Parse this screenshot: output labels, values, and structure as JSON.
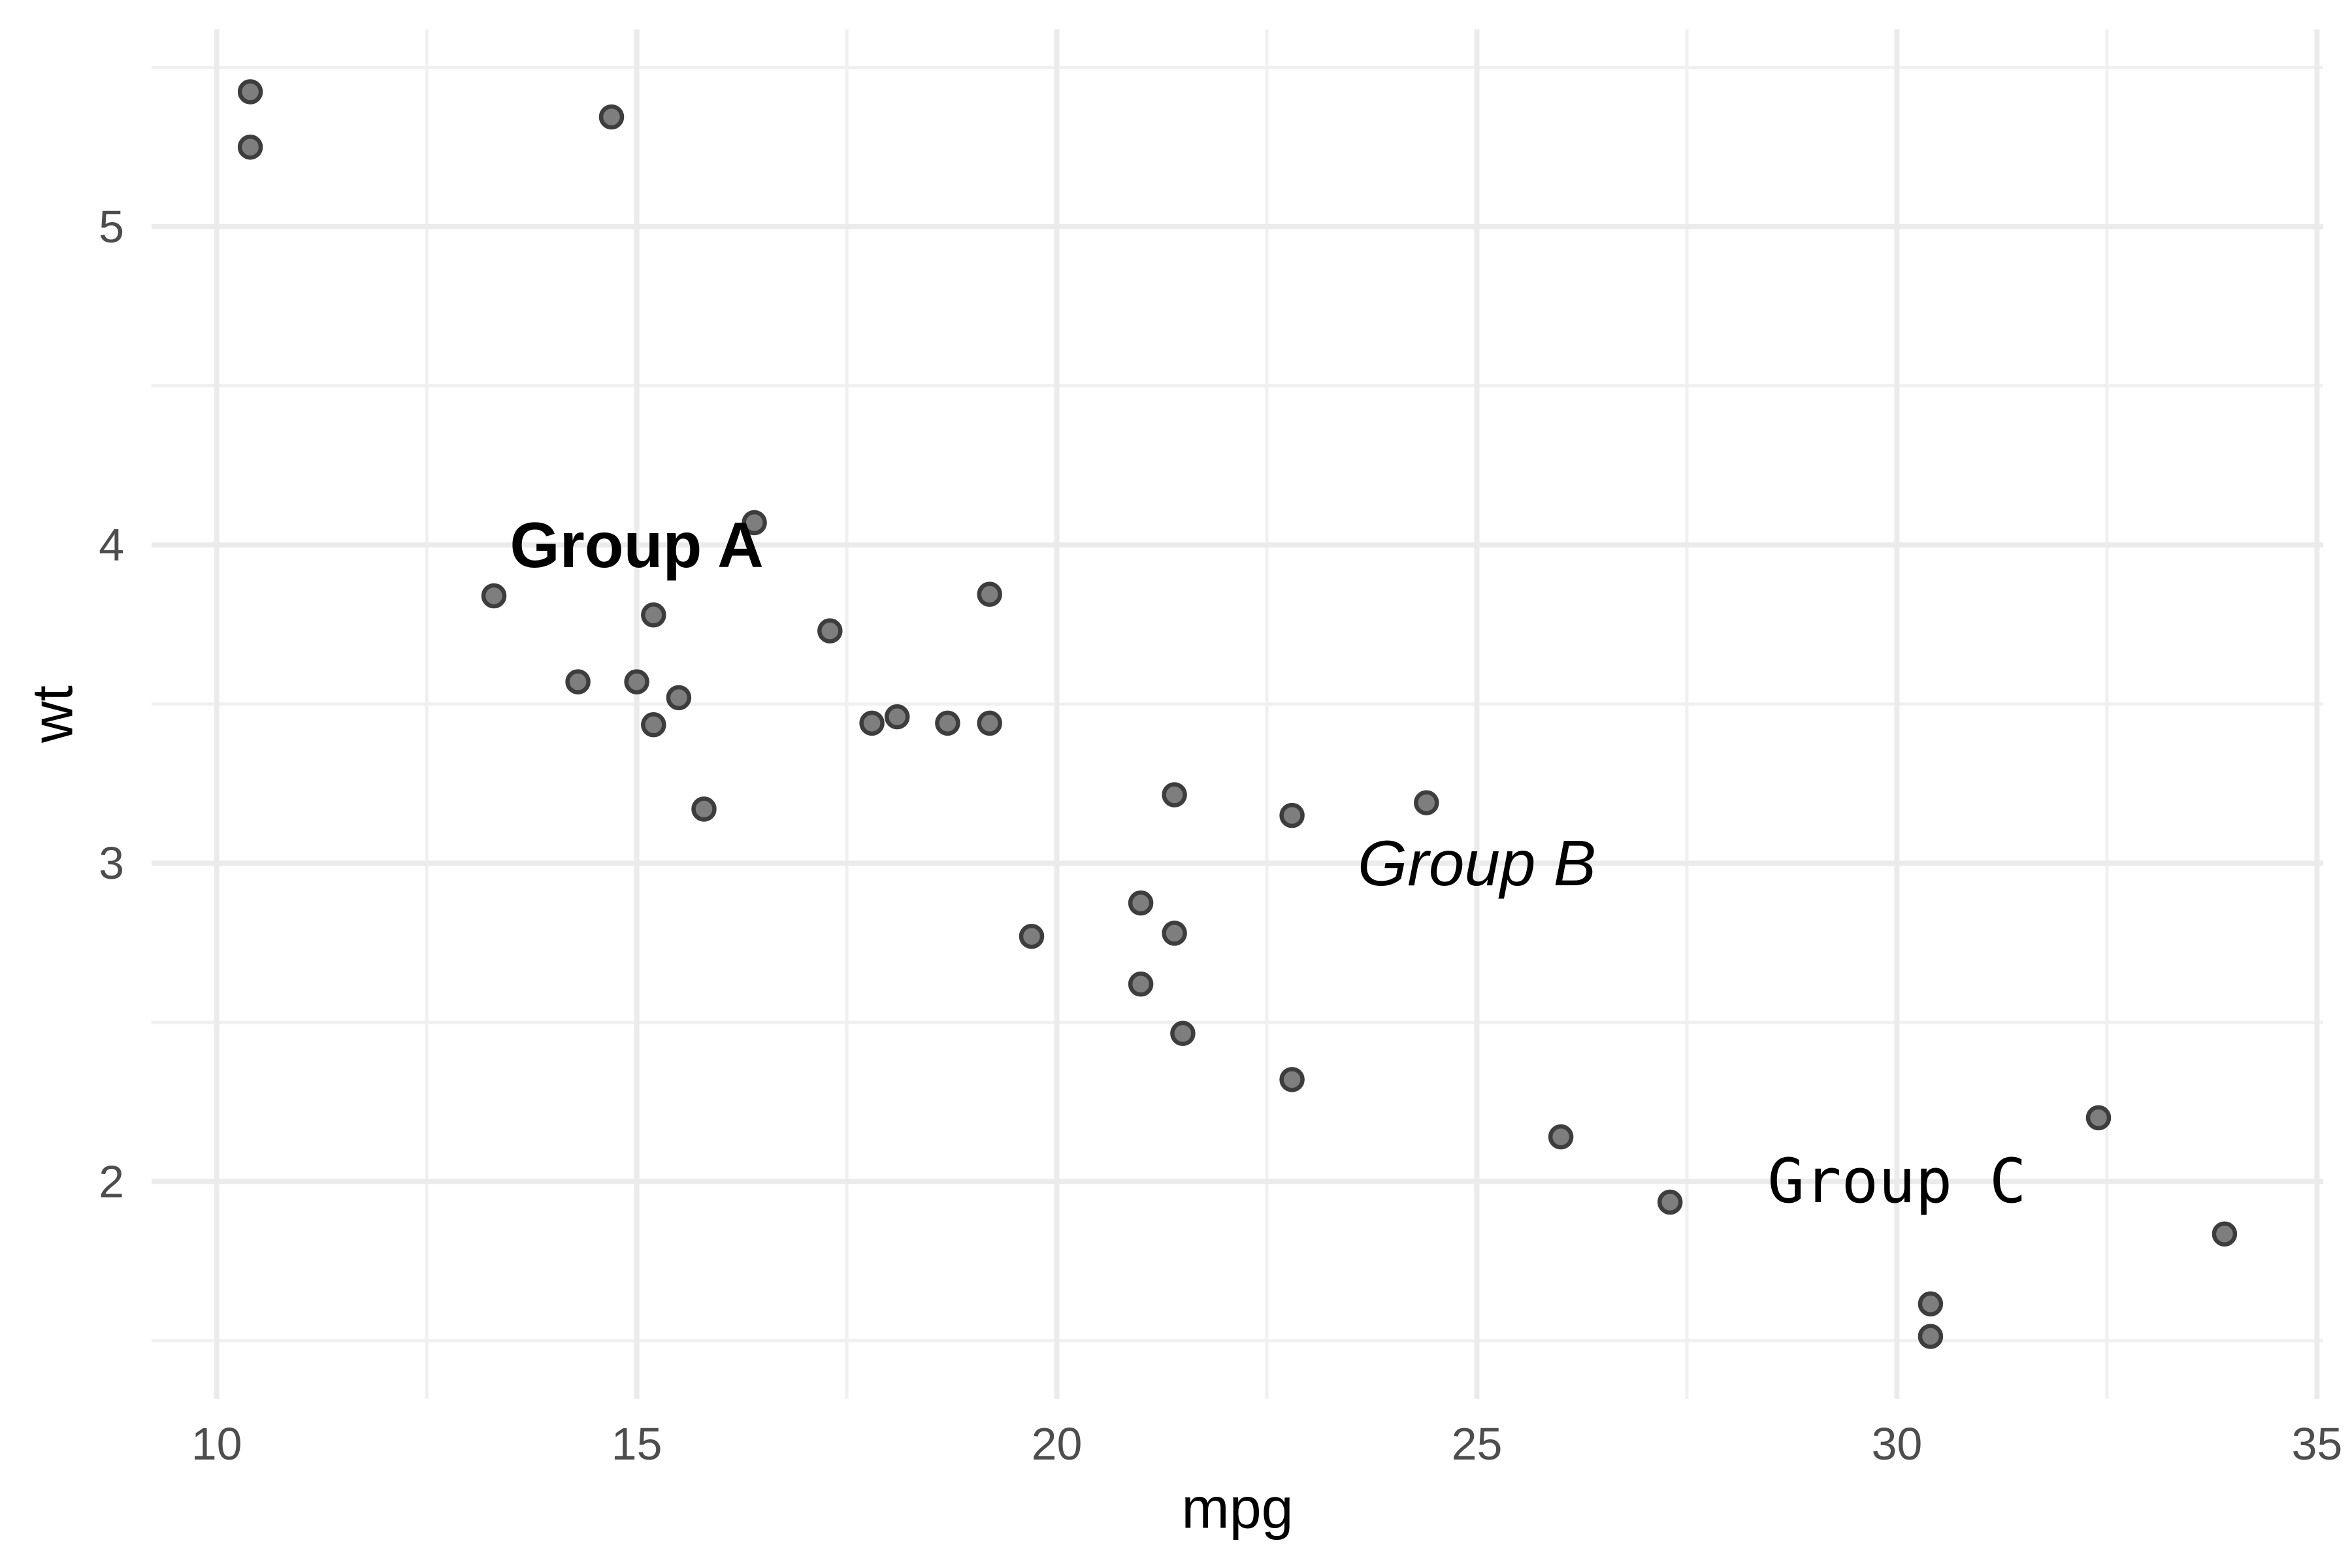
{
  "chart_data": {
    "type": "scatter",
    "title": "",
    "xlabel": "mpg",
    "ylabel": "wt",
    "xlim": [
      9.225,
      35.075
    ],
    "ylim": [
      1.317,
      5.62
    ],
    "x_major_ticks": [
      10,
      15,
      20,
      25,
      30,
      35
    ],
    "x_minor_ticks": [
      12.5,
      17.5,
      22.5,
      27.5,
      32.5
    ],
    "y_major_ticks": [
      2,
      3,
      4,
      5
    ],
    "y_minor_ticks": [
      1.5,
      2.5,
      3.5,
      4.5,
      5.5
    ],
    "grid": "major+minor",
    "legend": "none",
    "points_mpg_wt": [
      [
        21.0,
        2.62
      ],
      [
        21.0,
        2.875
      ],
      [
        22.8,
        2.32
      ],
      [
        21.4,
        3.215
      ],
      [
        18.7,
        3.44
      ],
      [
        18.1,
        3.46
      ],
      [
        14.3,
        3.57
      ],
      [
        24.4,
        3.19
      ],
      [
        22.8,
        3.15
      ],
      [
        19.2,
        3.44
      ],
      [
        17.8,
        3.44
      ],
      [
        16.4,
        4.07
      ],
      [
        17.3,
        3.73
      ],
      [
        15.2,
        3.78
      ],
      [
        10.4,
        5.25
      ],
      [
        10.4,
        5.424
      ],
      [
        14.7,
        5.345
      ],
      [
        32.4,
        2.2
      ],
      [
        30.4,
        1.615
      ],
      [
        33.9,
        1.835
      ],
      [
        21.5,
        2.465
      ],
      [
        15.5,
        3.52
      ],
      [
        15.2,
        3.435
      ],
      [
        13.3,
        3.84
      ],
      [
        19.2,
        3.845
      ],
      [
        27.3,
        1.935
      ],
      [
        26.0,
        2.14
      ],
      [
        30.4,
        1.513
      ],
      [
        15.8,
        3.17
      ],
      [
        19.7,
        2.77
      ],
      [
        15.0,
        3.57
      ],
      [
        21.4,
        2.78
      ]
    ],
    "annotations": [
      {
        "label": "Group A",
        "x": 15,
        "y": 4,
        "fontface": "bold",
        "family": "sans"
      },
      {
        "label": "Group B",
        "x": 25,
        "y": 3,
        "fontface": "italic",
        "family": "sans"
      },
      {
        "label": "Group C",
        "x": 30,
        "y": 2,
        "fontface": "plain",
        "family": "mono"
      }
    ],
    "colors": {
      "background": "#FFFFFF",
      "grid_major": "#EBEBEB",
      "grid_minor": "#F0F0F0",
      "point_fill": "#7E7E7E",
      "point_stroke": "#3D3D3D",
      "tick_label": "#4D4D4D",
      "axis_title": "#000000",
      "annotation": "#000000"
    }
  }
}
